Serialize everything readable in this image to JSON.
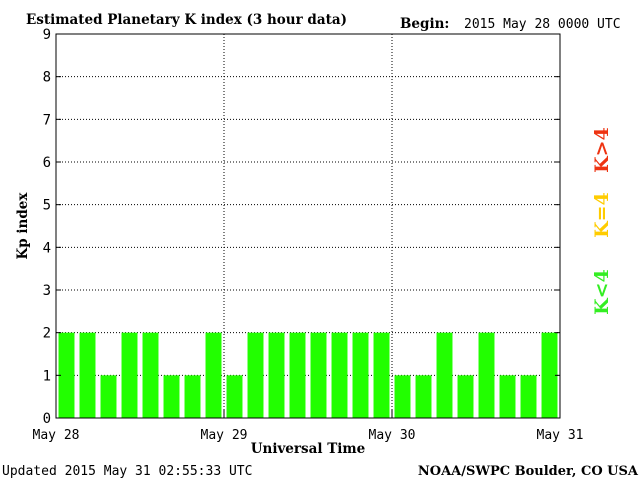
{
  "chart_data": {
    "type": "bar",
    "title": "Estimated Planetary K index (3 hour data)",
    "begin_label": "Begin:",
    "begin_value": "2015 May 28 0000 UTC",
    "ylabel": "Kp index",
    "xlabel": "Universal Time",
    "ylim": [
      0,
      9
    ],
    "yticks": [
      "0",
      "1",
      "2",
      "3",
      "4",
      "5",
      "6",
      "7",
      "8",
      "9"
    ],
    "day_labels": [
      "May 28",
      "May 29",
      "May 30",
      "May 31"
    ],
    "values": [
      2,
      2,
      1,
      2,
      2,
      1,
      1,
      2,
      1,
      2,
      2,
      2,
      2,
      2,
      2,
      2,
      1,
      1,
      2,
      1,
      2,
      1,
      1,
      2
    ],
    "bar_color": "#22ff00",
    "grid": "dotted",
    "legend": [
      {
        "label": "K<4",
        "color": "#33ee22"
      },
      {
        "label": "K=4",
        "color": "#ffcc00"
      },
      {
        "label": "K>4",
        "color": "#ee3311"
      }
    ]
  },
  "footer": {
    "updated": "Updated 2015 May 31 02:55:33 UTC",
    "source": "NOAA/SWPC Boulder, CO USA"
  }
}
